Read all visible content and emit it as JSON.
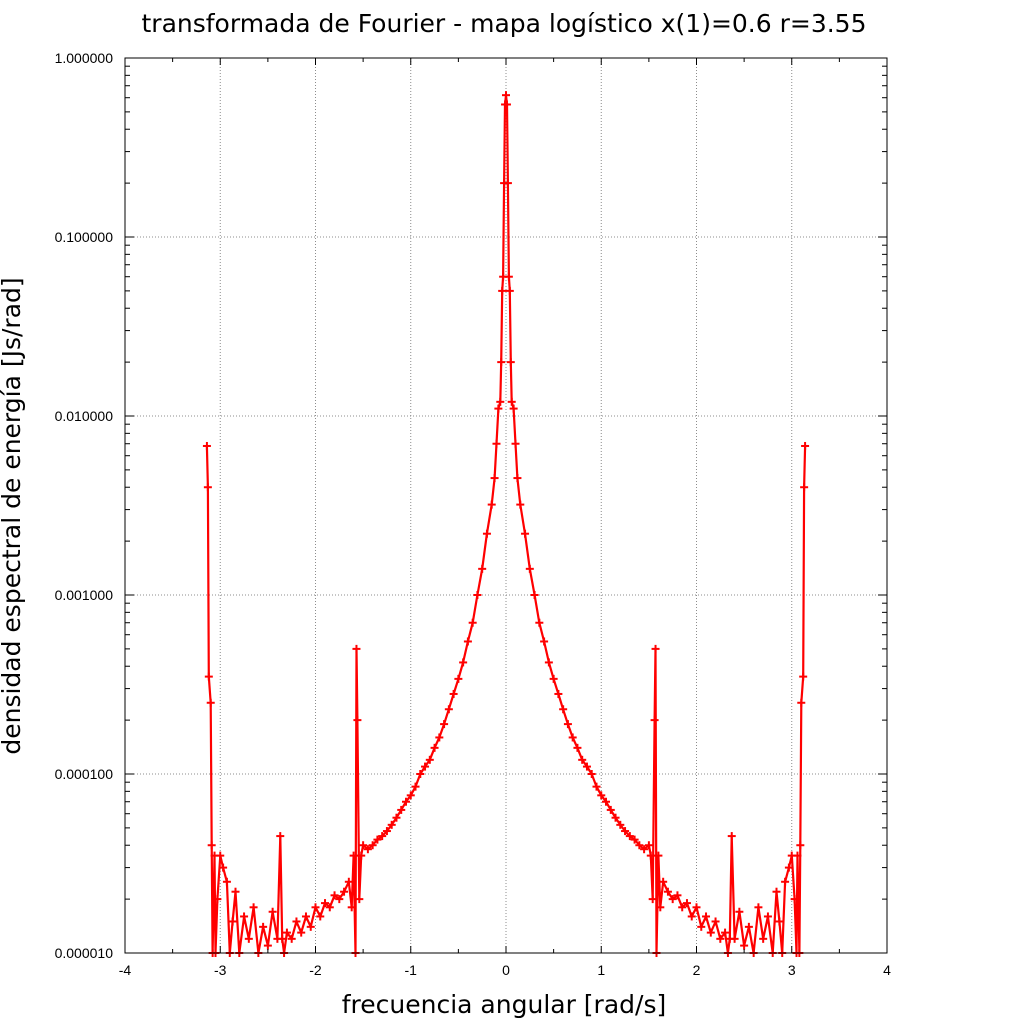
{
  "chart_data": {
    "type": "line",
    "title": "transformada de Fourier - mapa logístico x(1)=0.6   r=3.55",
    "xlabel": "frecuencia angular [rad/s]",
    "ylabel": "densidad espectral de energía [Js/rad]",
    "xlim": [
      -4,
      4
    ],
    "ylim": [
      1e-05,
      1.0
    ],
    "yscale": "log",
    "grid": true,
    "legend": "none",
    "marker": "plus",
    "color": "#ff0000",
    "x_ticks": [
      -4,
      -3,
      -2,
      -1,
      0,
      1,
      2,
      3,
      4
    ],
    "x_tick_labels": [
      "-4",
      "-3",
      "-2",
      "-1",
      "0",
      "1",
      "2",
      "3",
      "4"
    ],
    "y_ticks": [
      1e-05,
      0.0001,
      0.001,
      0.01,
      0.1,
      1.0
    ],
    "y_tick_labels": [
      "0.000010",
      "0.000100",
      "0.001000",
      "0.010000",
      "0.100000",
      "1.000000"
    ],
    "series": [
      {
        "x": [
          -3.14,
          -3.13,
          -3.12,
          -3.1,
          -3.09,
          -3.08,
          -3.06,
          -3.05,
          -3.03,
          -3.0,
          -2.97,
          -2.93,
          -2.9,
          -2.87,
          -2.84,
          -2.8,
          -2.75,
          -2.7,
          -2.65,
          -2.6,
          -2.55,
          -2.5,
          -2.45,
          -2.4,
          -2.37,
          -2.35,
          -2.33,
          -2.3,
          -2.25,
          -2.2,
          -2.15,
          -2.1,
          -2.05,
          -2.0,
          -1.95,
          -1.9,
          -1.85,
          -1.8,
          -1.75,
          -1.7,
          -1.65,
          -1.62,
          -1.6,
          -1.58,
          -1.57,
          -1.56,
          -1.54,
          -1.52,
          -1.5,
          -1.45,
          -1.4,
          -1.35,
          -1.3,
          -1.25,
          -1.2,
          -1.15,
          -1.1,
          -1.05,
          -1.0,
          -0.95,
          -0.9,
          -0.85,
          -0.8,
          -0.75,
          -0.7,
          -0.65,
          -0.6,
          -0.55,
          -0.5,
          -0.45,
          -0.4,
          -0.35,
          -0.3,
          -0.25,
          -0.2,
          -0.15,
          -0.12,
          -0.1,
          -0.08,
          -0.06,
          -0.05,
          -0.04,
          -0.03,
          -0.02,
          -0.01,
          0.0,
          0.01,
          0.02,
          0.03,
          0.04,
          0.05,
          0.06,
          0.08,
          0.1,
          0.12,
          0.15,
          0.2,
          0.25,
          0.3,
          0.35,
          0.4,
          0.45,
          0.5,
          0.55,
          0.6,
          0.65,
          0.7,
          0.75,
          0.8,
          0.85,
          0.9,
          0.95,
          1.0,
          1.05,
          1.1,
          1.15,
          1.2,
          1.25,
          1.3,
          1.35,
          1.4,
          1.45,
          1.5,
          1.52,
          1.54,
          1.56,
          1.57,
          1.58,
          1.6,
          1.62,
          1.65,
          1.7,
          1.75,
          1.8,
          1.85,
          1.9,
          1.95,
          2.0,
          2.05,
          2.1,
          2.15,
          2.2,
          2.25,
          2.3,
          2.33,
          2.35,
          2.37,
          2.4,
          2.45,
          2.5,
          2.55,
          2.6,
          2.65,
          2.7,
          2.75,
          2.8,
          2.84,
          2.87,
          2.9,
          2.93,
          2.97,
          3.0,
          3.03,
          3.05,
          3.06,
          3.08,
          3.09,
          3.1,
          3.12,
          3.13,
          3.14
        ],
        "y": [
          0.0068,
          0.004,
          0.00035,
          0.00025,
          4e-05,
          1e-05,
          3.5e-05,
          1e-05,
          2e-05,
          3.5e-05,
          3e-05,
          2.5e-05,
          1e-05,
          1.5e-05,
          2.2e-05,
          1e-05,
          1.6e-05,
          1.2e-05,
          1.8e-05,
          1e-05,
          1.4e-05,
          1.1e-05,
          1.7e-05,
          1.2e-05,
          4.5e-05,
          1.2e-05,
          1e-05,
          1.3e-05,
          1.2e-05,
          1.5e-05,
          1.3e-05,
          1.6e-05,
          1.4e-05,
          1.8e-05,
          1.6e-05,
          1.9e-05,
          1.8e-05,
          2.1e-05,
          2e-05,
          2.2e-05,
          2.5e-05,
          1.8e-05,
          3.5e-05,
          1e-05,
          0.0005,
          0.0002,
          2e-05,
          3.5e-05,
          4e-05,
          3.8e-05,
          4e-05,
          4.3e-05,
          4.5e-05,
          4.8e-05,
          5.2e-05,
          5.7e-05,
          6.3e-05,
          7e-05,
          7.6e-05,
          8.5e-05,
          0.0001,
          0.00011,
          0.00012,
          0.00014,
          0.00016,
          0.00019,
          0.00023,
          0.00028,
          0.00034,
          0.00042,
          0.00055,
          0.0007,
          0.001,
          0.0014,
          0.0022,
          0.0032,
          0.0045,
          0.007,
          0.011,
          0.012,
          0.02,
          0.05,
          0.06,
          0.2,
          0.55,
          0.62,
          0.55,
          0.2,
          0.06,
          0.05,
          0.02,
          0.012,
          0.011,
          0.007,
          0.0045,
          0.0032,
          0.0022,
          0.0014,
          0.001,
          0.0007,
          0.00055,
          0.00042,
          0.00034,
          0.00028,
          0.00023,
          0.00019,
          0.00016,
          0.00014,
          0.00012,
          0.00011,
          0.0001,
          8.5e-05,
          7.6e-05,
          7e-05,
          6.3e-05,
          5.7e-05,
          5.2e-05,
          4.8e-05,
          4.5e-05,
          4.3e-05,
          4e-05,
          3.8e-05,
          4e-05,
          3.5e-05,
          2e-05,
          0.0002,
          0.0005,
          1e-05,
          3.5e-05,
          1.8e-05,
          2.5e-05,
          2.2e-05,
          2e-05,
          2.1e-05,
          1.8e-05,
          1.9e-05,
          1.6e-05,
          1.8e-05,
          1.4e-05,
          1.6e-05,
          1.3e-05,
          1.5e-05,
          1.2e-05,
          1.3e-05,
          1e-05,
          1.2e-05,
          4.5e-05,
          1.2e-05,
          1.7e-05,
          1.1e-05,
          1.4e-05,
          1e-05,
          1.8e-05,
          1.2e-05,
          1.6e-05,
          1e-05,
          2.2e-05,
          1.5e-05,
          1e-05,
          2.5e-05,
          3e-05,
          3.5e-05,
          2e-05,
          1e-05,
          3.5e-05,
          1e-05,
          4e-05,
          0.00025,
          0.00035,
          0.004,
          0.0068
        ]
      }
    ]
  }
}
